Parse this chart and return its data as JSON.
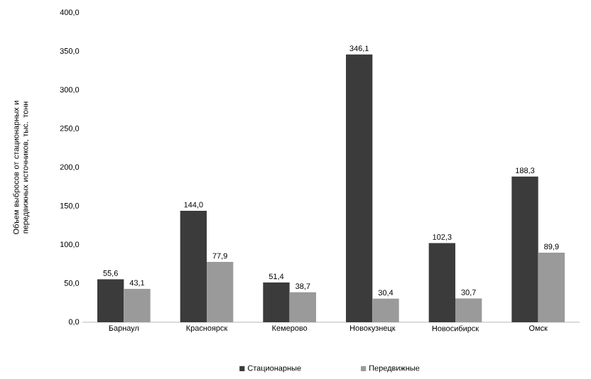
{
  "chart_data": {
    "type": "bar",
    "ylabel": "Объем выбросов от стационарных и передвижных источников, тыс. тонн",
    "categories": [
      "Барнаул",
      "Красноярск",
      "Кемерово",
      "Новокузнецк",
      "Новосибирск",
      "Омск"
    ],
    "series": [
      {
        "name": "Стационарные",
        "color": "#3b3b3b",
        "values": [
          55.6,
          144.0,
          51.4,
          346.1,
          102.3,
          188.3
        ],
        "value_labels": [
          "55,6",
          "144,0",
          "51,4",
          "346,1",
          "102,3",
          "188,3"
        ]
      },
      {
        "name": "Передвижные",
        "color": "#9a9a9a",
        "values": [
          43.1,
          77.9,
          38.7,
          30.4,
          30.7,
          89.9
        ],
        "value_labels": [
          "43,1",
          "77,9",
          "38,7",
          "30,4",
          "30,7",
          "89,9"
        ]
      }
    ],
    "ylim": [
      0,
      400
    ],
    "yticks": [
      {
        "value": 0,
        "label": "0,0"
      },
      {
        "value": 50,
        "label": "50,0"
      },
      {
        "value": 100,
        "label": "100,0"
      },
      {
        "value": 150,
        "label": "150,0"
      },
      {
        "value": 200,
        "label": "200,0"
      },
      {
        "value": 250,
        "label": "250,0"
      },
      {
        "value": 300,
        "label": "300,0"
      },
      {
        "value": 350,
        "label": "350,0"
      },
      {
        "value": 400,
        "label": "400,0"
      }
    ],
    "legend": "bottom",
    "grid": false
  }
}
